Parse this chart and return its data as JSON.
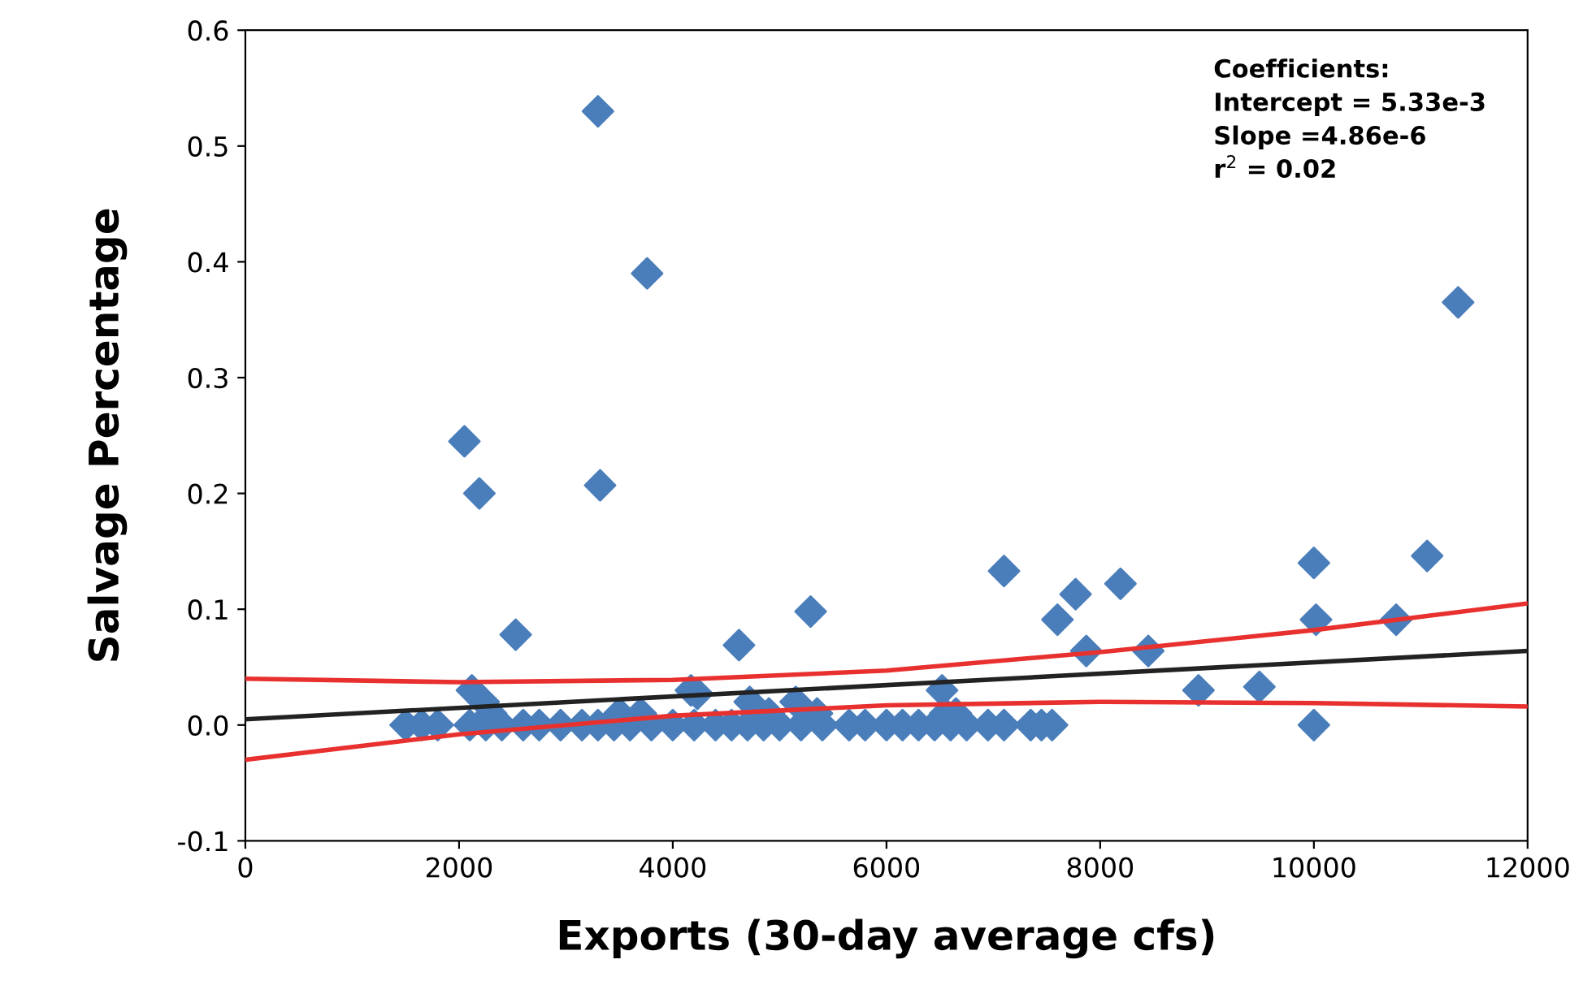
{
  "chart_data": {
    "type": "scatter",
    "xlabel": "Exports (30-day average cfs)",
    "ylabel": "Salvage Percentage",
    "xlim": [
      0,
      12000
    ],
    "ylim": [
      -0.1,
      0.6
    ],
    "xticks": [
      0,
      2000,
      4000,
      6000,
      8000,
      10000,
      12000
    ],
    "yticks": [
      {
        "value": -0.1,
        "label": "-0.1"
      },
      {
        "value": 0,
        "label": "0.0"
      },
      {
        "value": 0.1,
        "label": "0.1"
      },
      {
        "value": 0.2,
        "label": "0.2"
      },
      {
        "value": 0.3,
        "label": "0.3"
      },
      {
        "value": 0.4,
        "label": "0.4"
      },
      {
        "value": 0.5,
        "label": "0.5"
      },
      {
        "value": 0.6,
        "label": "0.6"
      }
    ],
    "grid": false,
    "legend": false,
    "annotations": [
      "Coefficients:\nIntercept = 5.33e-3\nSlope =4.86e-6\nr$^{2}$ = 0.02"
    ],
    "series": [
      {
        "marker": "diamond",
        "color": "#4a7ebb",
        "x": [
          3300,
          3320,
          3760,
          2050,
          2190,
          2530,
          11350,
          7100,
          7770,
          8190,
          7600,
          7870,
          8450,
          10000,
          10020,
          11060,
          10770,
          8920,
          9490,
          10000,
          5290,
          4620,
          5150,
          2120,
          2230,
          4170,
          4230,
          6520,
          4720,
          1500,
          1650,
          1800,
          2100,
          2250,
          2400,
          2600,
          2750,
          2950,
          3150,
          3300,
          3450,
          3600,
          3800,
          4000,
          4200,
          4400,
          4550,
          4700,
          4850,
          5000,
          5200,
          5400,
          5650,
          5800,
          6000,
          6150,
          6300,
          6450,
          6600,
          6750,
          6950,
          7100,
          7350,
          7450,
          7550,
          2300,
          3500,
          3700,
          4900,
          5350,
          6550,
          6650
        ],
        "values": [
          0.53,
          0.207,
          0.39,
          0.245,
          0.2,
          0.078,
          0.365,
          0.133,
          0.113,
          0.122,
          0.091,
          0.064,
          0.064,
          0.14,
          0.091,
          0.146,
          0.091,
          0.03,
          0.033,
          0.0,
          0.098,
          0.069,
          0.02,
          0.03,
          0.02,
          0.03,
          0.027,
          0.03,
          0.02,
          0,
          0,
          0,
          0,
          0,
          0,
          0,
          0,
          0,
          0,
          0,
          0,
          0,
          0,
          0,
          0,
          0,
          0,
          0,
          0,
          0,
          0,
          0,
          0,
          0,
          0,
          0,
          0,
          0,
          0,
          0,
          0,
          0,
          0,
          0,
          0,
          0.01,
          0.01,
          0.01,
          0.01,
          0.01,
          0.01,
          0.01
        ]
      },
      {
        "type": "line",
        "line_style": "solid",
        "color": "#222222",
        "x": [
          0,
          12000
        ],
        "values": [
          0.005,
          0.064
        ]
      },
      {
        "type": "line",
        "line_style": "solid",
        "color": "#e8312f",
        "x": [
          0,
          2000,
          4000,
          6000,
          8000,
          10000,
          12000
        ],
        "values": [
          0.04,
          0.037,
          0.039,
          0.047,
          0.063,
          0.082,
          0.105
        ]
      },
      {
        "type": "line",
        "line_style": "solid",
        "color": "#e8312f",
        "x": [
          0,
          2000,
          4000,
          6000,
          8000,
          10000,
          12000
        ],
        "values": [
          -0.03,
          -0.008,
          0.008,
          0.017,
          0.02,
          0.019,
          0.016
        ]
      }
    ]
  }
}
